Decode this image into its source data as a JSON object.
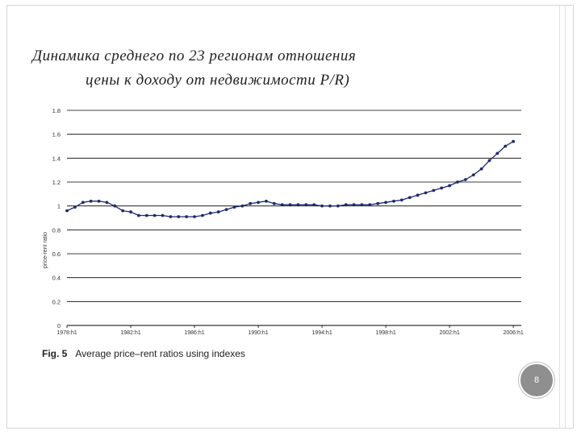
{
  "slide": {
    "title_line1": "Динамика среднего по 23 регионам отношения",
    "title_line2": "цены к доходу от недвижимости P/R)",
    "caption_label": "Fig. 5",
    "caption_text": "Average price–rent ratios using indexes",
    "page_number": "8"
  },
  "chart_data": {
    "type": "line",
    "title": "",
    "ylabel": "price-rent ratio",
    "xlabel": "",
    "ylim": [
      0,
      1.8
    ],
    "yticks": [
      "0",
      "0.2",
      "0.4",
      "0.6",
      "0.8",
      "1",
      "1.2",
      "1.4",
      "1.6",
      "1.8"
    ],
    "xlim": [
      1978,
      2006.5
    ],
    "xticks": [
      {
        "x": 1978,
        "label": "1978:h1"
      },
      {
        "x": 1982,
        "label": "1982:h1"
      },
      {
        "x": 1986,
        "label": "1986:h1"
      },
      {
        "x": 1990,
        "label": "1990:h1"
      },
      {
        "x": 1994,
        "label": "1994:h1"
      },
      {
        "x": 1998,
        "label": "1998:h1"
      },
      {
        "x": 2002,
        "label": "2002:h1"
      },
      {
        "x": 2006,
        "label": "2006:h1"
      }
    ],
    "grid": "horizontal",
    "line_color": "#1f2a6e",
    "series": [
      {
        "name": "",
        "x": [
          1978,
          1978.5,
          1979,
          1979.5,
          1980,
          1980.5,
          1981,
          1981.5,
          1982,
          1982.5,
          1983,
          1983.5,
          1984,
          1984.5,
          1985,
          1985.5,
          1986,
          1986.5,
          1987,
          1987.5,
          1988,
          1988.5,
          1989,
          1989.5,
          1990,
          1990.5,
          1991,
          1991.5,
          1992,
          1992.5,
          1993,
          1993.5,
          1994,
          1994.5,
          1995,
          1995.5,
          1996,
          1996.5,
          1997,
          1997.5,
          1998,
          1998.5,
          1999,
          1999.5,
          2000,
          2000.5,
          2001,
          2001.5,
          2002,
          2002.5,
          2003,
          2003.5,
          2004,
          2004.5,
          2005,
          2005.5,
          2006
        ],
        "values": [
          0.96,
          0.99,
          1.03,
          1.04,
          1.04,
          1.03,
          1.0,
          0.96,
          0.95,
          0.92,
          0.92,
          0.92,
          0.92,
          0.91,
          0.91,
          0.91,
          0.91,
          0.92,
          0.94,
          0.95,
          0.97,
          0.99,
          1.0,
          1.02,
          1.03,
          1.04,
          1.02,
          1.01,
          1.01,
          1.01,
          1.01,
          1.01,
          1.0,
          1.0,
          1.0,
          1.01,
          1.01,
          1.01,
          1.01,
          1.02,
          1.03,
          1.04,
          1.05,
          1.07,
          1.09,
          1.11,
          1.13,
          1.15,
          1.17,
          1.2,
          1.22,
          1.26,
          1.31,
          1.38,
          1.44,
          1.5,
          1.54
        ]
      }
    ]
  }
}
